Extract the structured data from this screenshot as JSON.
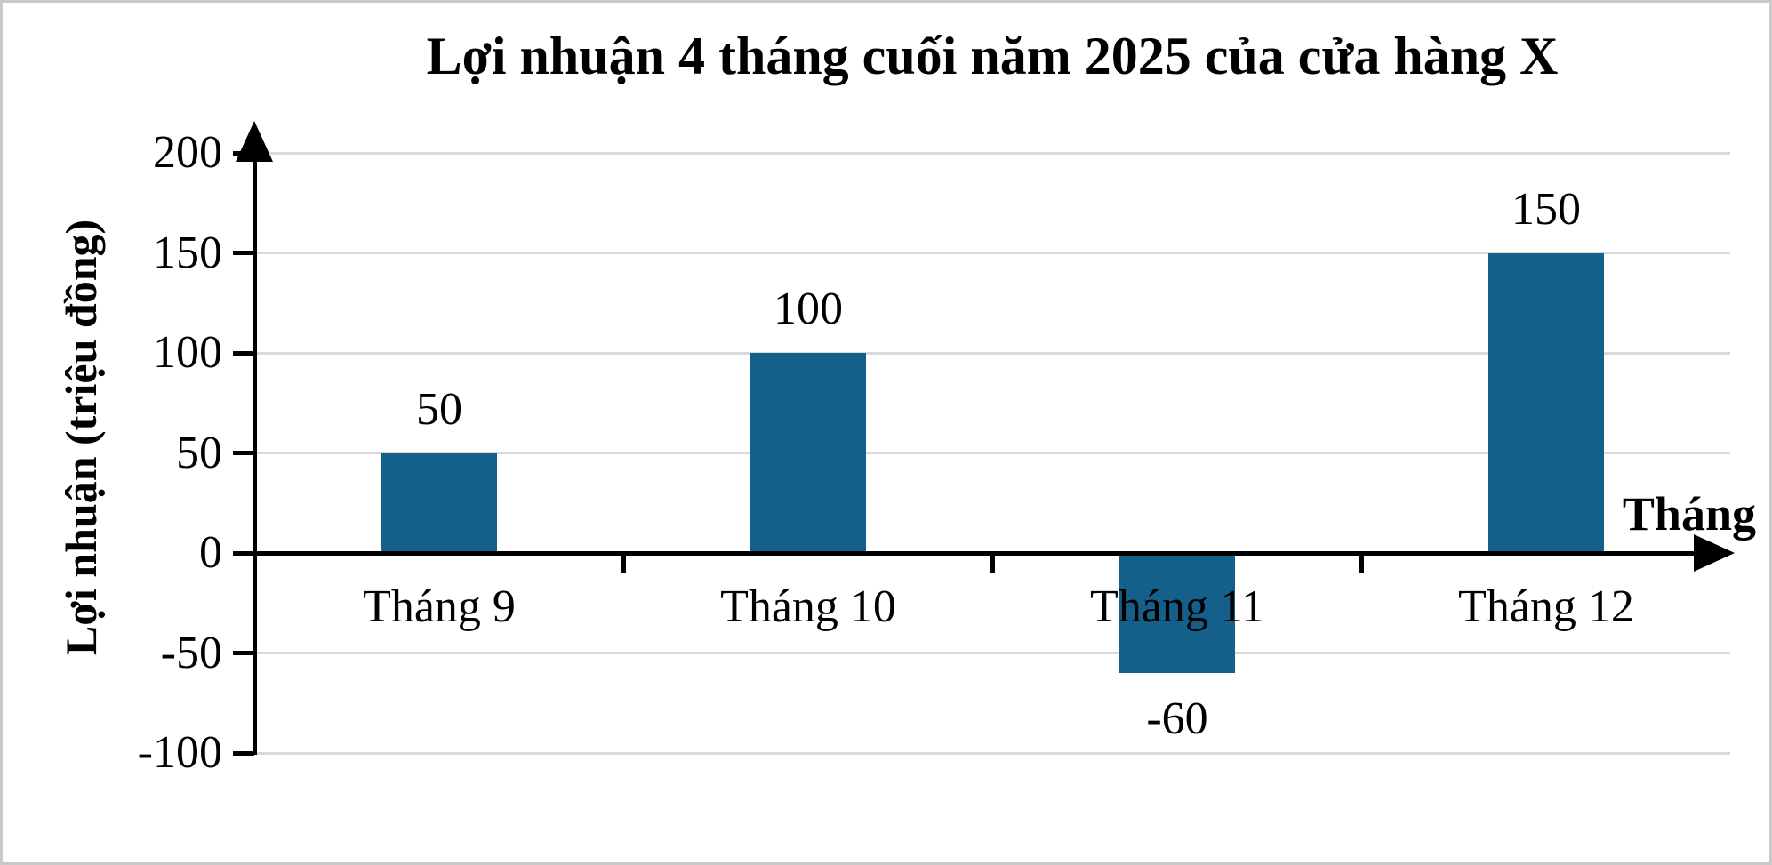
{
  "chart_data": {
    "type": "bar",
    "title": "Lợi nhuận 4 tháng cuối năm 2025 của cửa hàng X",
    "xlabel": "Tháng",
    "ylabel": "Lợi nhuận (triệu đồng)",
    "categories": [
      "Tháng 9",
      "Tháng 10",
      "Tháng 11",
      "Tháng 12"
    ],
    "values": [
      50,
      100,
      -60,
      150
    ],
    "data_labels": [
      "50",
      "100",
      "-60",
      "150"
    ],
    "yticks": [
      200,
      150,
      100,
      50,
      0,
      -50,
      -100
    ],
    "ylim": [
      -100,
      200
    ],
    "grid": true,
    "legend": "none",
    "bar_color": "#15608a",
    "gridline_color": "#d9d9d9",
    "axis_color": "#000000",
    "text_color": "#000000",
    "background_color": "#ffffff",
    "border_color": "#c9c9c9"
  }
}
